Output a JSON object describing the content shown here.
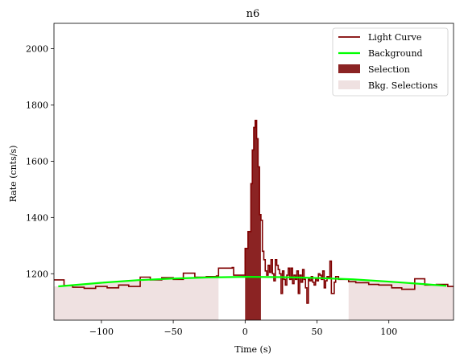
{
  "chart_data": {
    "type": "line",
    "title": "n6",
    "xlabel": "Time (s)",
    "ylabel": "Rate (cnts/s)",
    "xlim": [
      -133,
      145
    ],
    "ylim": [
      1035,
      2090
    ],
    "xticks": [
      -100,
      -50,
      0,
      50,
      100
    ],
    "yticks": [
      1200,
      1400,
      1600,
      1800,
      2000
    ],
    "xtick_labels": [
      "−100",
      "−50",
      "0",
      "50",
      "100"
    ],
    "ytick_labels": [
      "1200",
      "1400",
      "1600",
      "1800",
      "2000"
    ],
    "grid": false,
    "legend_position": "top-right",
    "legend": [
      {
        "label": "Light Curve",
        "kind": "line",
        "color": "#7f0000"
      },
      {
        "label": "Background",
        "kind": "line",
        "color": "#00ff00"
      },
      {
        "label": "Selection",
        "kind": "patch",
        "color": "#8b2323"
      },
      {
        "label": "Bkg. Selections",
        "kind": "patch",
        "color": "#efe1e1"
      }
    ],
    "bkg_selections": [
      [
        -133,
        -18.5
      ],
      [
        72,
        145
      ]
    ],
    "selection": [
      0,
      11
    ],
    "background_curve": {
      "x": [
        -130,
        -100,
        -75,
        -50,
        -25,
        0,
        25,
        50,
        75,
        100,
        125,
        140
      ],
      "y": [
        1155,
        1168,
        1177,
        1183,
        1187,
        1189,
        1188,
        1185,
        1180,
        1172,
        1163,
        1157
      ]
    },
    "light_curve": {
      "x": [
        -133,
        -126,
        -120,
        -112,
        -104,
        -96,
        -88,
        -81,
        -73,
        -66,
        -58,
        -50,
        -43,
        -35,
        -27,
        -20,
        -18.5,
        -9,
        -8,
        0,
        2,
        4,
        5,
        6,
        7,
        8,
        9,
        10,
        11,
        12,
        13,
        14,
        15,
        16,
        17,
        18,
        19,
        20,
        21,
        22,
        23,
        24,
        25,
        26,
        27,
        28,
        29,
        30,
        31,
        32,
        33,
        34,
        35,
        36,
        37,
        38,
        39,
        40,
        41,
        42,
        43,
        44,
        45,
        46,
        47,
        48,
        49,
        50,
        51,
        52,
        53,
        54,
        55,
        56,
        57,
        58,
        59,
        60,
        62,
        63,
        65,
        72,
        77,
        86,
        93,
        102,
        109,
        118,
        125,
        133,
        141,
        145
      ],
      "y": [
        1178,
        1158,
        1152,
        1148,
        1155,
        1150,
        1160,
        1155,
        1188,
        1178,
        1186,
        1180,
        1202,
        1188,
        1190,
        1192,
        1220,
        1222,
        1195,
        1290,
        1350,
        1520,
        1640,
        1720,
        1745,
        1680,
        1580,
        1410,
        1390,
        1280,
        1250,
        1210,
        1195,
        1230,
        1205,
        1250,
        1200,
        1175,
        1250,
        1230,
        1215,
        1200,
        1130,
        1210,
        1180,
        1160,
        1195,
        1220,
        1180,
        1220,
        1165,
        1195,
        1180,
        1210,
        1130,
        1195,
        1170,
        1215,
        1180,
        1150,
        1095,
        1180,
        1175,
        1190,
        1170,
        1160,
        1185,
        1175,
        1200,
        1195,
        1180,
        1210,
        1150,
        1175,
        1190,
        1185,
        1245,
        1130,
        1170,
        1190,
        1180,
        1172,
        1168,
        1162,
        1160,
        1150,
        1145,
        1182,
        1160,
        1162,
        1155,
        1158
      ]
    }
  }
}
